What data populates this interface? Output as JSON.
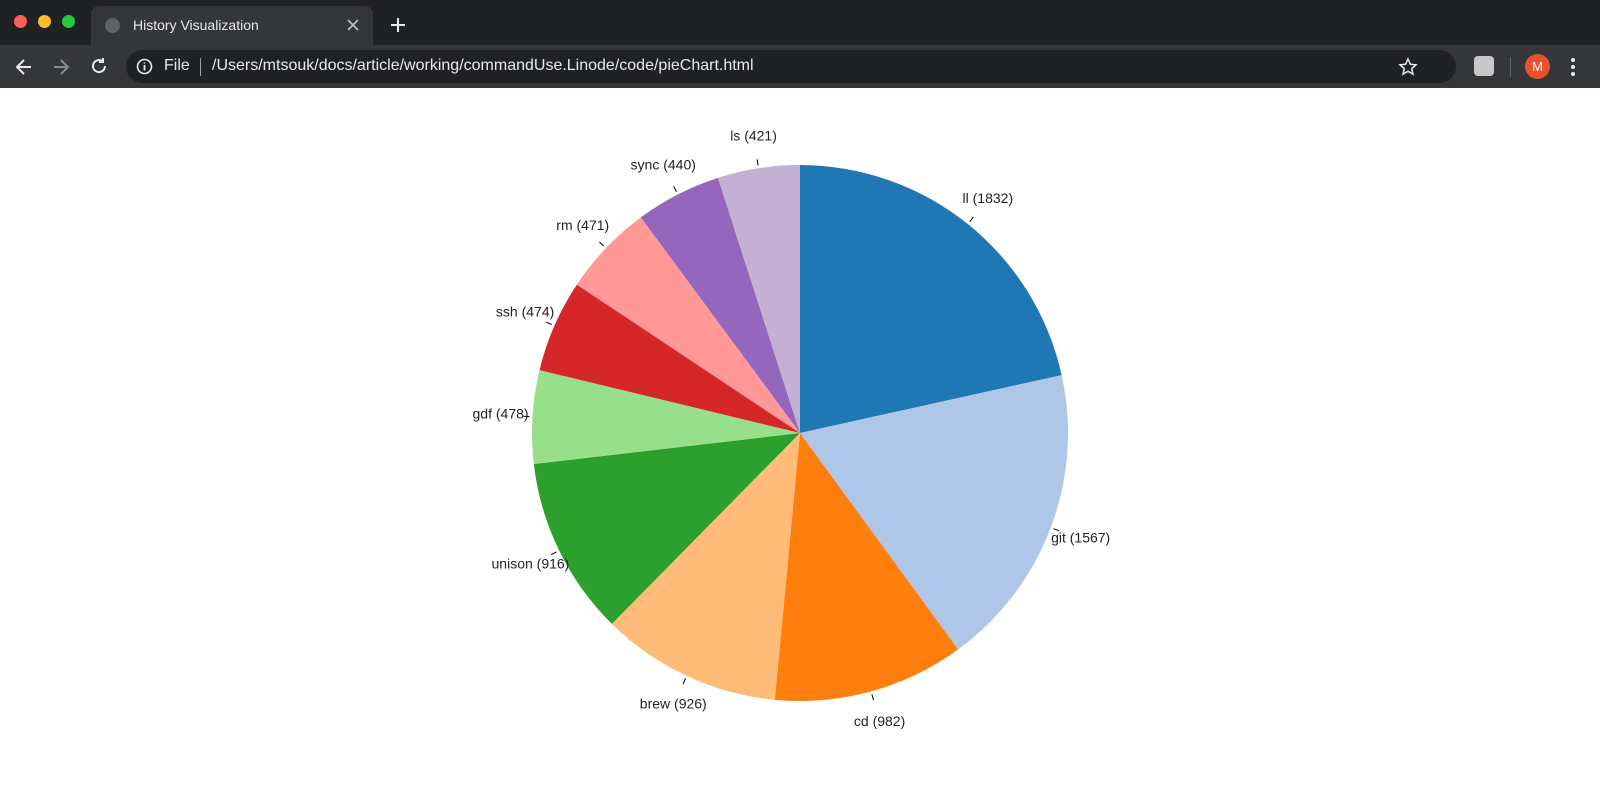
{
  "browser": {
    "tab_title": "History Visualization",
    "url_scheme": "File",
    "url": "/Users/mtsouk/docs/article/working/commandUse.Linode/code/pieChart.html",
    "avatar": "M"
  },
  "chart_data": {
    "type": "pie",
    "values": [
      1832,
      1567,
      982,
      926,
      916,
      478,
      474,
      471,
      440,
      421
    ],
    "value_labels": [
      "ll (1832)",
      "git (1567)",
      "cd (982)",
      "brew (926)",
      "unison (916)",
      "gdf (478)",
      "ssh (474)",
      "rm (471)",
      "sync (440)",
      "ls (421)"
    ],
    "colors": [
      "#1f77b4",
      "#aec7e8",
      "#ff7f0e",
      "#ffbb78",
      "#2ca02c",
      "#98df8a",
      "#d62728",
      "#ff9896",
      "#9467bd",
      "#c5b0d5"
    ]
  }
}
